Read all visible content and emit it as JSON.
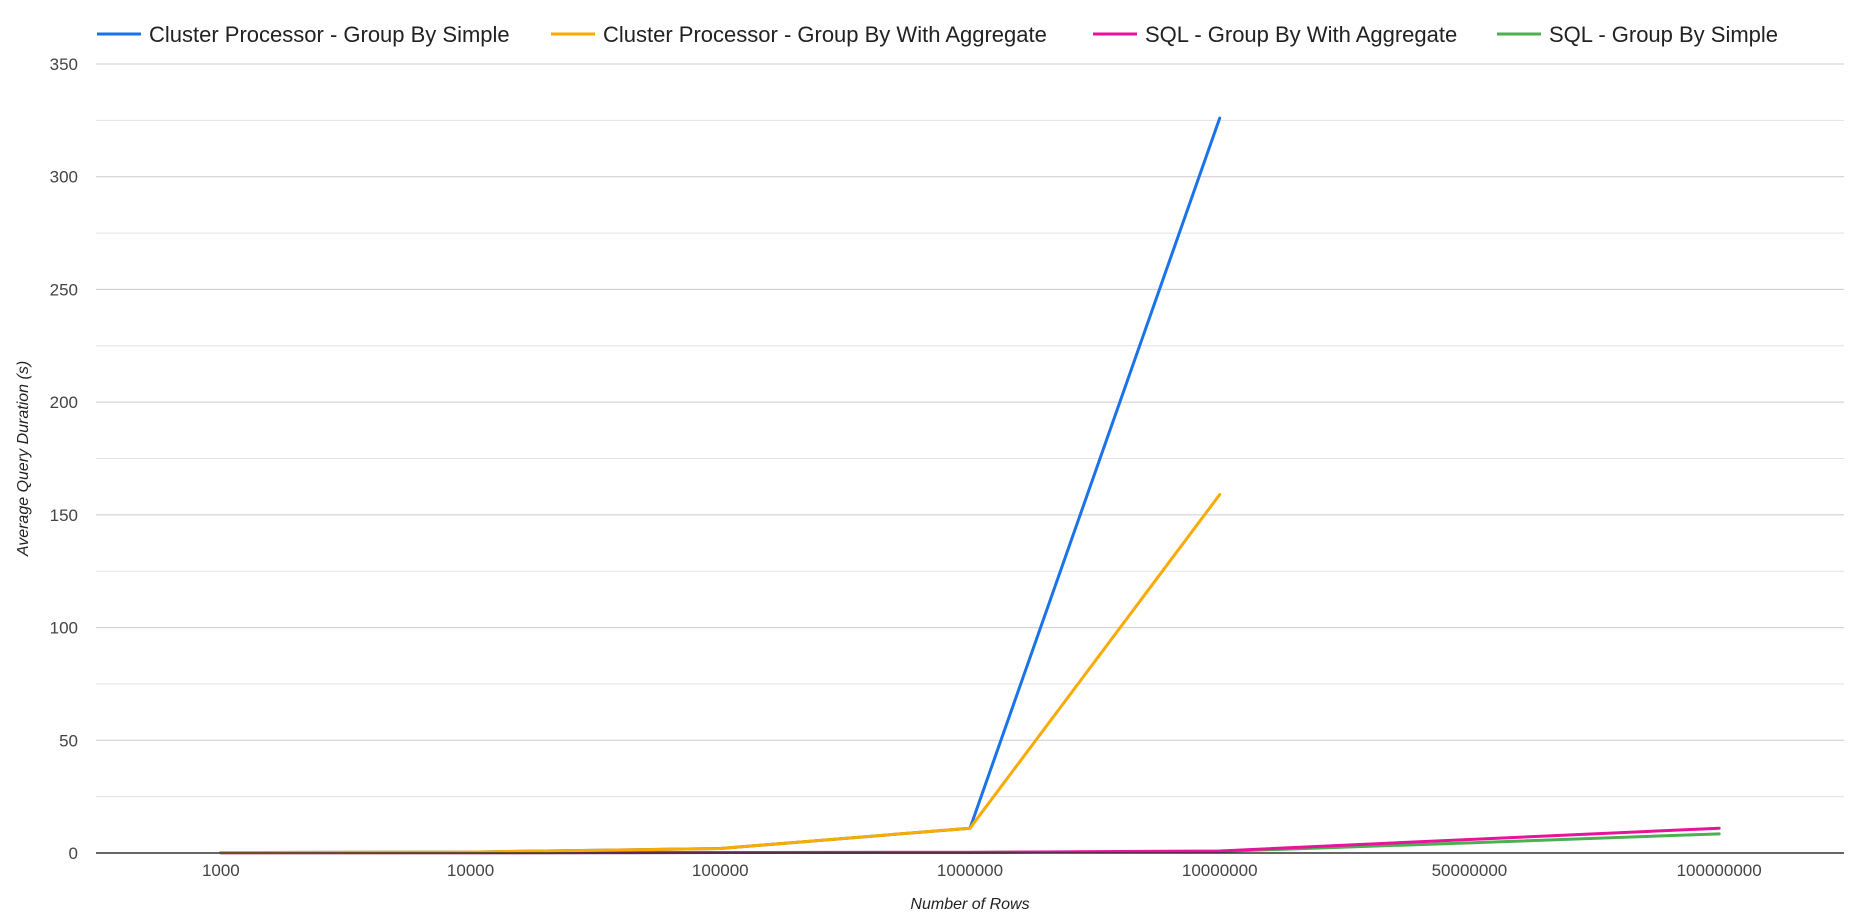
{
  "chart_data": {
    "type": "line",
    "title": "",
    "xlabel": "Number of Rows",
    "ylabel": "Average Query Duration (s)",
    "categories": [
      "1000",
      "10000",
      "100000",
      "1000000",
      "10000000",
      "50000000",
      "100000000"
    ],
    "ylim": [
      0,
      350
    ],
    "yticks": [
      0,
      50,
      100,
      150,
      200,
      250,
      300,
      350
    ],
    "grid": true,
    "minor_grid": true,
    "legend_position": "top",
    "series": [
      {
        "name": "Cluster Processor - Group By Simple",
        "color": "#1a73e8",
        "values": [
          0.2,
          0.4,
          2,
          11,
          326,
          null,
          null
        ]
      },
      {
        "name": "Cluster Processor - Group By With Aggregate",
        "color": "#f9ab00",
        "values": [
          0.2,
          0.4,
          2,
          11,
          159,
          null,
          null
        ]
      },
      {
        "name": "SQL - Group By With Aggregate",
        "color": "#e8129b",
        "values": [
          0.1,
          0.1,
          0.2,
          0.3,
          0.9,
          6,
          11
        ]
      },
      {
        "name": "SQL - Group By Simple",
        "color": "#4caf50",
        "values": [
          0.1,
          0.1,
          0.2,
          0.3,
          0.7,
          4.5,
          8.5
        ]
      }
    ]
  }
}
